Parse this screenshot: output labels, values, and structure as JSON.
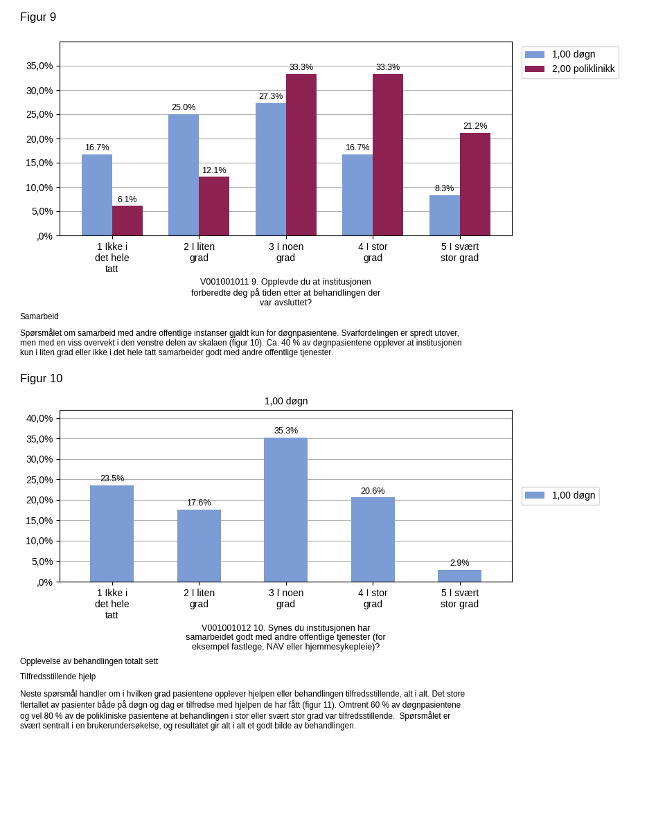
{
  "chart_data": [
    {
      "type": "bar",
      "title": "Figur 9",
      "xlabel": "V001001011 9. Opplevde du at institusjonen\nforberedte deg på tiden etter at behandlingen der\nvar avsluttet?",
      "categories": [
        "1 Ikke i\ndet hele\ntatt",
        "2 I liten\ngrad",
        "3 I noen\ngrad",
        "4 I stor\ngrad",
        "5 I svært\nstor grad"
      ],
      "series": [
        {
          "name": "1,00 døgn",
          "color": "#7b9cd4",
          "values": [
            16.7,
            25.0,
            27.3,
            16.7,
            8.3
          ],
          "value_labels": [
            "16.7%",
            "25.0%",
            "27.3%",
            "16.7%",
            "8.3%"
          ]
        },
        {
          "name": "2,00 poliklinikk",
          "color": "#8b2252",
          "values": [
            6.1,
            12.1,
            33.3,
            33.3,
            21.2
          ],
          "value_labels": [
            "6.1%",
            "12.1%",
            "33.3%",
            "33.3%",
            "21.2%"
          ]
        }
      ],
      "ylim": [
        0,
        40
      ],
      "yticks": [
        {
          "value": 0,
          "label": ",0%"
        },
        {
          "value": 5,
          "label": "5,0%"
        },
        {
          "value": 10,
          "label": "10,0%"
        },
        {
          "value": 15,
          "label": "15,0%"
        },
        {
          "value": 20,
          "label": "20,0%"
        },
        {
          "value": 25,
          "label": "25,0%"
        },
        {
          "value": 30,
          "label": "30,0%"
        },
        {
          "value": 35,
          "label": "35,0%"
        }
      ],
      "grid": true,
      "legend": "upper right",
      "data_labels": true,
      "annotations": [
        "Samarbeid",
        "Spørsmålet om samarbeid med andre offentlige instanser gjaldt kun for døgnpasientene. Svarfordelingen er spredt utover,\nmen med en viss overvekt i den venstre delen av skalaen (figur 10). Ca. 40 % av døgnpasientene opplever at institusjonen\nkun i liten grad eller ikke i det hele tatt samarbeider godt med andre offentlige tjenester."
      ]
    },
    {
      "type": "bar",
      "title": "Figur 10",
      "subtitle": "1,00 døgn",
      "xlabel": "V001001012 10. Synes du institusjonen har\nsamarbeidet godt med andre offentlige tjenester (for\neksempel fastlege, NAV eller hjemmesykepleie)?",
      "categories": [
        "1 Ikke i\ndet hele\ntatt",
        "2 I liten\ngrad",
        "3 I noen\ngrad",
        "4 I stor\ngrad",
        "5 I svært\nstor grad"
      ],
      "series": [
        {
          "name": "1,00 døgn",
          "color": "#7b9cd4",
          "values": [
            23.5,
            17.6,
            35.3,
            20.6,
            2.9
          ],
          "value_labels": [
            "23.5%",
            "17.6%",
            "35.3%",
            "20.6%",
            "2.9%"
          ]
        }
      ],
      "ylim": [
        0,
        42
      ],
      "yticks": [
        {
          "value": 0,
          "label": ",0%"
        },
        {
          "value": 5,
          "label": "5,0%"
        },
        {
          "value": 10,
          "label": "10,0%"
        },
        {
          "value": 15,
          "label": "15,0%"
        },
        {
          "value": 20,
          "label": "20,0%"
        },
        {
          "value": 25,
          "label": "25,0%"
        },
        {
          "value": 30,
          "label": "30,0%"
        },
        {
          "value": 35,
          "label": "35,0%"
        },
        {
          "value": 40,
          "label": "40,0%"
        }
      ],
      "grid": true,
      "legend": "center right",
      "data_labels": true,
      "annotations": [
        "Opplevelse av behandlingen totalt sett",
        "Tilfredsstillende hjelp",
        "Neste spørsmål handler om i hvilken grad pasientene opplever hjelpen eller behandlingen tilfredsstillende, alt i alt. Det store\nflertallet av pasienter både på døgn og dag er tilfredse med hjelpen de har fått (figur 11). Omtrent 60 % av døgnpasientene\nog vel 80 % av de polikliniske pasientene at behandlingen i stor eller svært stor grad var tilfredsstillende.  Spørsmålet er\nsvært sentralt i en brukerundersøkelse, og resultatet gir alt i alt et godt bilde av behandlingen."
      ]
    }
  ]
}
